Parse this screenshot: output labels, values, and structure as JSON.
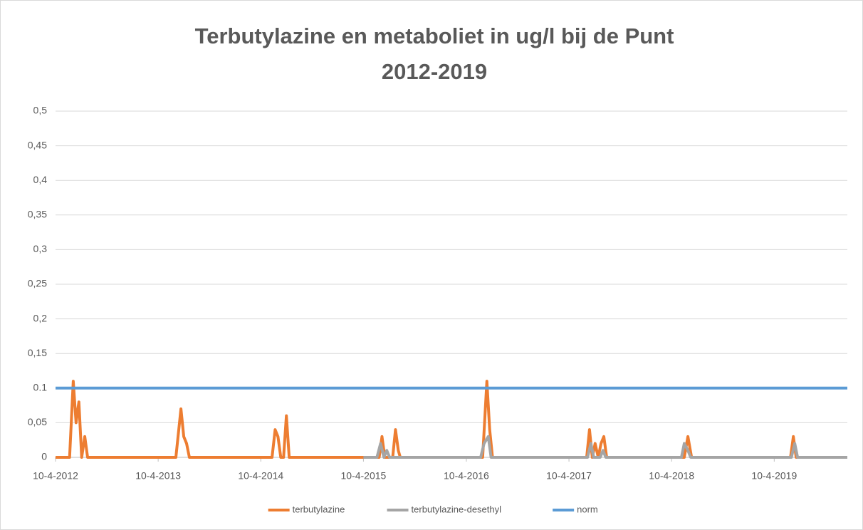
{
  "chart_data": {
    "type": "line",
    "title": "Terbutylazine en metaboliet in ug/l bij de Punt",
    "subtitle": "2012-2019",
    "xlim": [
      "2012-04-10",
      "2019-12-26"
    ],
    "xticks": [
      {
        "value": "2012-04-10",
        "label": "10-4-2012"
      },
      {
        "value": "2013-04-10",
        "label": "10-4-2013"
      },
      {
        "value": "2014-04-10",
        "label": "10-4-2014"
      },
      {
        "value": "2015-04-10",
        "label": "10-4-2015"
      },
      {
        "value": "2016-04-10",
        "label": "10-4-2016"
      },
      {
        "value": "2017-04-10",
        "label": "10-4-2017"
      },
      {
        "value": "2018-04-10",
        "label": "10-4-2018"
      },
      {
        "value": "2019-04-10",
        "label": "10-4-2019"
      }
    ],
    "ylim": [
      0,
      0.5
    ],
    "yticks": [
      0,
      {
        "value": 0.05,
        "label": "0,05"
      },
      0.1,
      {
        "value": 0.15,
        "label": "0,15"
      },
      {
        "value": 0.2,
        "label": "0,2"
      },
      {
        "value": 0.25,
        "label": "0,25"
      },
      {
        "value": 0.3,
        "label": "0,3"
      },
      {
        "value": 0.35,
        "label": "0,35"
      },
      {
        "value": 0.4,
        "label": "0,4"
      },
      {
        "value": 0.45,
        "label": "0,45"
      },
      {
        "value": 0.5,
        "label": "0,5"
      }
    ],
    "grid": true,
    "legend": "bottom",
    "series": [
      {
        "name": "terbutylazine",
        "color": "#ed7d31",
        "x": [
          "2012-04-10",
          "2012-05-30",
          "2012-06-12",
          "2012-06-22",
          "2012-07-02",
          "2012-07-12",
          "2012-07-23",
          "2012-08-02",
          "2013-06-12",
          "2013-06-30",
          "2013-07-10",
          "2013-07-20",
          "2013-07-30",
          "2014-05-20",
          "2014-05-31",
          "2014-06-10",
          "2014-06-20",
          "2014-06-30",
          "2014-07-10",
          "2014-07-20",
          "2015-03-31",
          "2015-06-05",
          "2015-06-15",
          "2015-06-25",
          "2015-07-23",
          "2015-08-02",
          "2015-08-12",
          "2015-08-19",
          "2016-06-07",
          "2016-06-22",
          "2016-07-02",
          "2016-07-12",
          "2017-06-12",
          "2017-06-22",
          "2017-07-02",
          "2017-07-12",
          "2017-07-23",
          "2017-08-02",
          "2017-08-12",
          "2017-08-22",
          "2018-05-25",
          "2018-06-07",
          "2018-06-20",
          "2019-06-07",
          "2019-06-17",
          "2019-06-27",
          "2019-12-26"
        ],
        "values": [
          0,
          0,
          0.11,
          0.05,
          0.08,
          0,
          0.03,
          0,
          0,
          0.07,
          0.03,
          0.02,
          0,
          0,
          0.04,
          0.03,
          0,
          0,
          0.06,
          0,
          0,
          0,
          0.03,
          0,
          0,
          0.04,
          0.01,
          0,
          0,
          0.11,
          0.04,
          0,
          0,
          0.04,
          0,
          0.02,
          0,
          0.02,
          0.03,
          0,
          0,
          0.03,
          0,
          0,
          0.03,
          0,
          0
        ]
      },
      {
        "name": "terbutylazine-desethyl",
        "color": "#a5a5a5",
        "x": [
          "2015-04-10",
          "2015-05-28",
          "2015-06-10",
          "2015-06-22",
          "2015-07-02",
          "2015-07-12",
          "2016-05-31",
          "2016-06-12",
          "2016-06-27",
          "2016-07-07",
          "2017-06-15",
          "2017-06-27",
          "2017-07-07",
          "2017-07-30",
          "2017-08-09",
          "2017-08-19",
          "2018-05-15",
          "2018-05-25",
          "2018-06-07",
          "2018-06-17",
          "2019-06-10",
          "2019-06-22",
          "2019-07-02",
          "2019-12-26"
        ],
        "values": [
          0,
          0,
          0.02,
          0,
          0.01,
          0,
          0,
          0.02,
          0.03,
          0,
          0,
          0.02,
          0,
          0,
          0.01,
          0,
          0,
          0.02,
          0.01,
          0,
          0,
          0.02,
          0,
          0
        ]
      },
      {
        "name": "norm",
        "color": "#5b9bd5",
        "x": [
          "2012-04-10",
          "2019-12-26"
        ],
        "values": [
          0.1,
          0.1
        ]
      }
    ]
  }
}
